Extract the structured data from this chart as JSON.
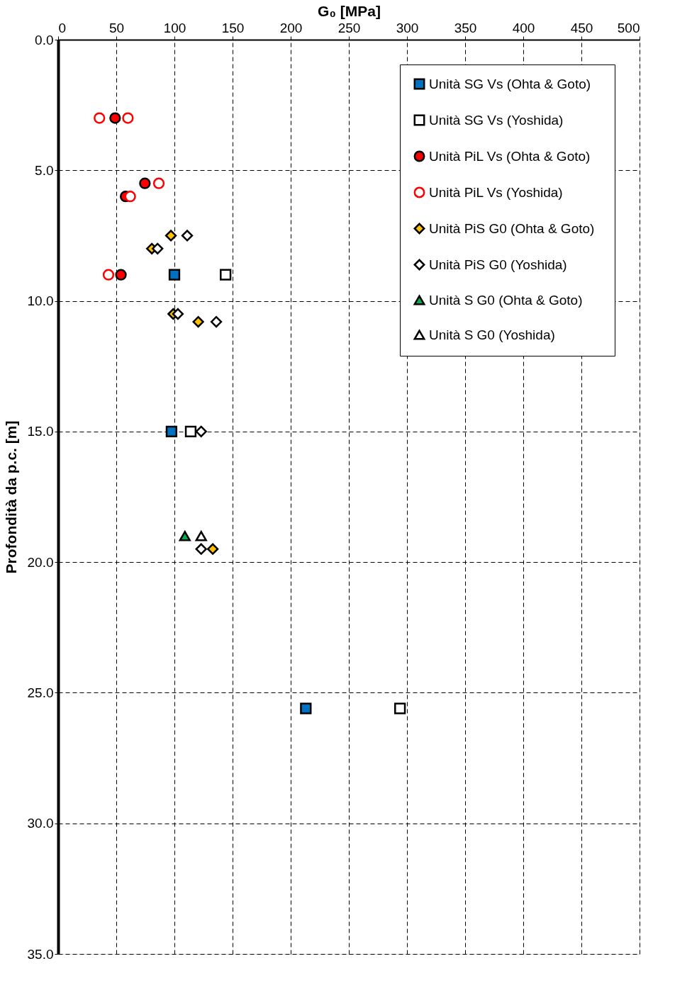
{
  "chart_data": {
    "type": "scatter",
    "xlabel": "G₀ [MPa]",
    "ylabel": "Profondità da p.c. [m]",
    "xlim": [
      0,
      500
    ],
    "xticks": [
      0,
      50,
      100,
      150,
      200,
      250,
      300,
      350,
      400,
      450,
      500
    ],
    "ylim": [
      35,
      0
    ],
    "yticks": [
      {
        "value": 0,
        "label": "0.0"
      },
      {
        "value": 5,
        "label": "5.0"
      },
      {
        "value": 10,
        "label": "10.0"
      },
      {
        "value": 15,
        "label": "15.0"
      },
      {
        "value": 20,
        "label": "20.0"
      },
      {
        "value": 25,
        "label": "25.0"
      },
      {
        "value": 30,
        "label": "30.0"
      },
      {
        "value": 35,
        "label": "35.0"
      }
    ],
    "grid": true,
    "legend": "top right",
    "series": [
      {
        "name": "Unità  SG Vs (Ohta & Goto)",
        "color": "#0070c0",
        "marker": "square",
        "x": [
          100,
          97.5,
          213
        ],
        "values": [
          9.0,
          15.0,
          25.6
        ]
      },
      {
        "name": "Unità  SG Vs (Yoshida)",
        "color": "#000000",
        "marker": "square",
        "x": [
          144,
          114,
          294
        ],
        "values": [
          9.0,
          15.0,
          25.6
        ]
      },
      {
        "name": "Unità  PiL Vs (Ohta & Goto)",
        "color": "#ff0000",
        "marker": "circle",
        "x": [
          49,
          74.6,
          58,
          54
        ],
        "values": [
          3.0,
          5.5,
          6.0,
          9.0
        ]
      },
      {
        "name": "Unità  PiL Vs (Yoshida)",
        "color": "#ff0000",
        "marker": "circle",
        "x": [
          35.5,
          60,
          86.6,
          62,
          43.3
        ],
        "values": [
          3.0,
          3.0,
          5.5,
          6.0,
          9.0
        ]
      },
      {
        "name": "Unità  PiS G0 (Ohta  & Goto)",
        "color": "#ffc000",
        "marker": "diamond",
        "x": [
          97,
          80.6,
          99,
          120.5,
          133
        ],
        "values": [
          7.5,
          8.0,
          10.5,
          10.8,
          19.5
        ]
      },
      {
        "name": "Unità  PiS G0 (Yoshida)",
        "color": "#000000",
        "marker": "diamond",
        "x": [
          111,
          85.5,
          103,
          136,
          123,
          123
        ],
        "values": [
          7.5,
          8.0,
          10.5,
          10.8,
          15.0,
          19.5
        ]
      },
      {
        "name": "Unità  S G0  (Ohta  & Goto)",
        "color": "#00b050",
        "marker": "triangle",
        "x": [
          109
        ],
        "values": [
          19.0
        ]
      },
      {
        "name": "Unità  S G0  (Yoshida)",
        "color": "#000000",
        "marker": "triangle",
        "x": [
          123
        ],
        "values": [
          19.0
        ]
      }
    ]
  }
}
